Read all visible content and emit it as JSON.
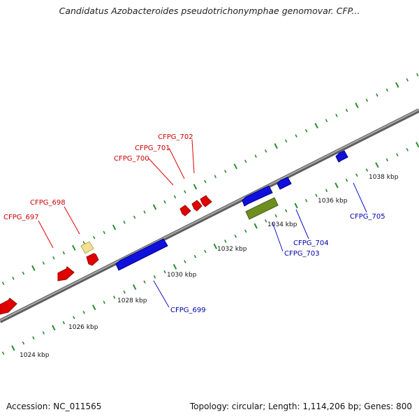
{
  "title": "Candidatus Azobacteroides pseudotrichonymphae genomovar. CFP...",
  "accession": "Accession: NC_011565",
  "summary": "Topology: circular; Length: 1,114,206 bp; Genes: 800",
  "colors": {
    "backbone": "#8c8c8c",
    "tick": "#2a8a2a",
    "forward_label": "#cc0000",
    "reverse_label": "#0000aa",
    "red_gene": "#e00000",
    "blue_gene": "#1010dd",
    "olive_gene": "#6e8f1e",
    "yellow_gene": "#f0e090"
  },
  "ruler": [
    {
      "label": "1024 kbp"
    },
    {
      "label": "1026 kbp"
    },
    {
      "label": "1028 kbp"
    },
    {
      "label": "1030 kbp"
    },
    {
      "label": "1032 kbp"
    },
    {
      "label": "1034 kbp"
    },
    {
      "label": "1036 kbp"
    },
    {
      "label": "1038 kbp"
    }
  ],
  "forward_labels": [
    {
      "text": "CFPG_697"
    },
    {
      "text": "CFPG_698"
    },
    {
      "text": "CFPG_700"
    },
    {
      "text": "CFPG_701"
    },
    {
      "text": "CFPG_702"
    }
  ],
  "reverse_labels": [
    {
      "text": "CFPG_699"
    },
    {
      "text": "CFPG_703"
    },
    {
      "text": "CFPG_704"
    },
    {
      "text": "CFPG_705"
    }
  ]
}
